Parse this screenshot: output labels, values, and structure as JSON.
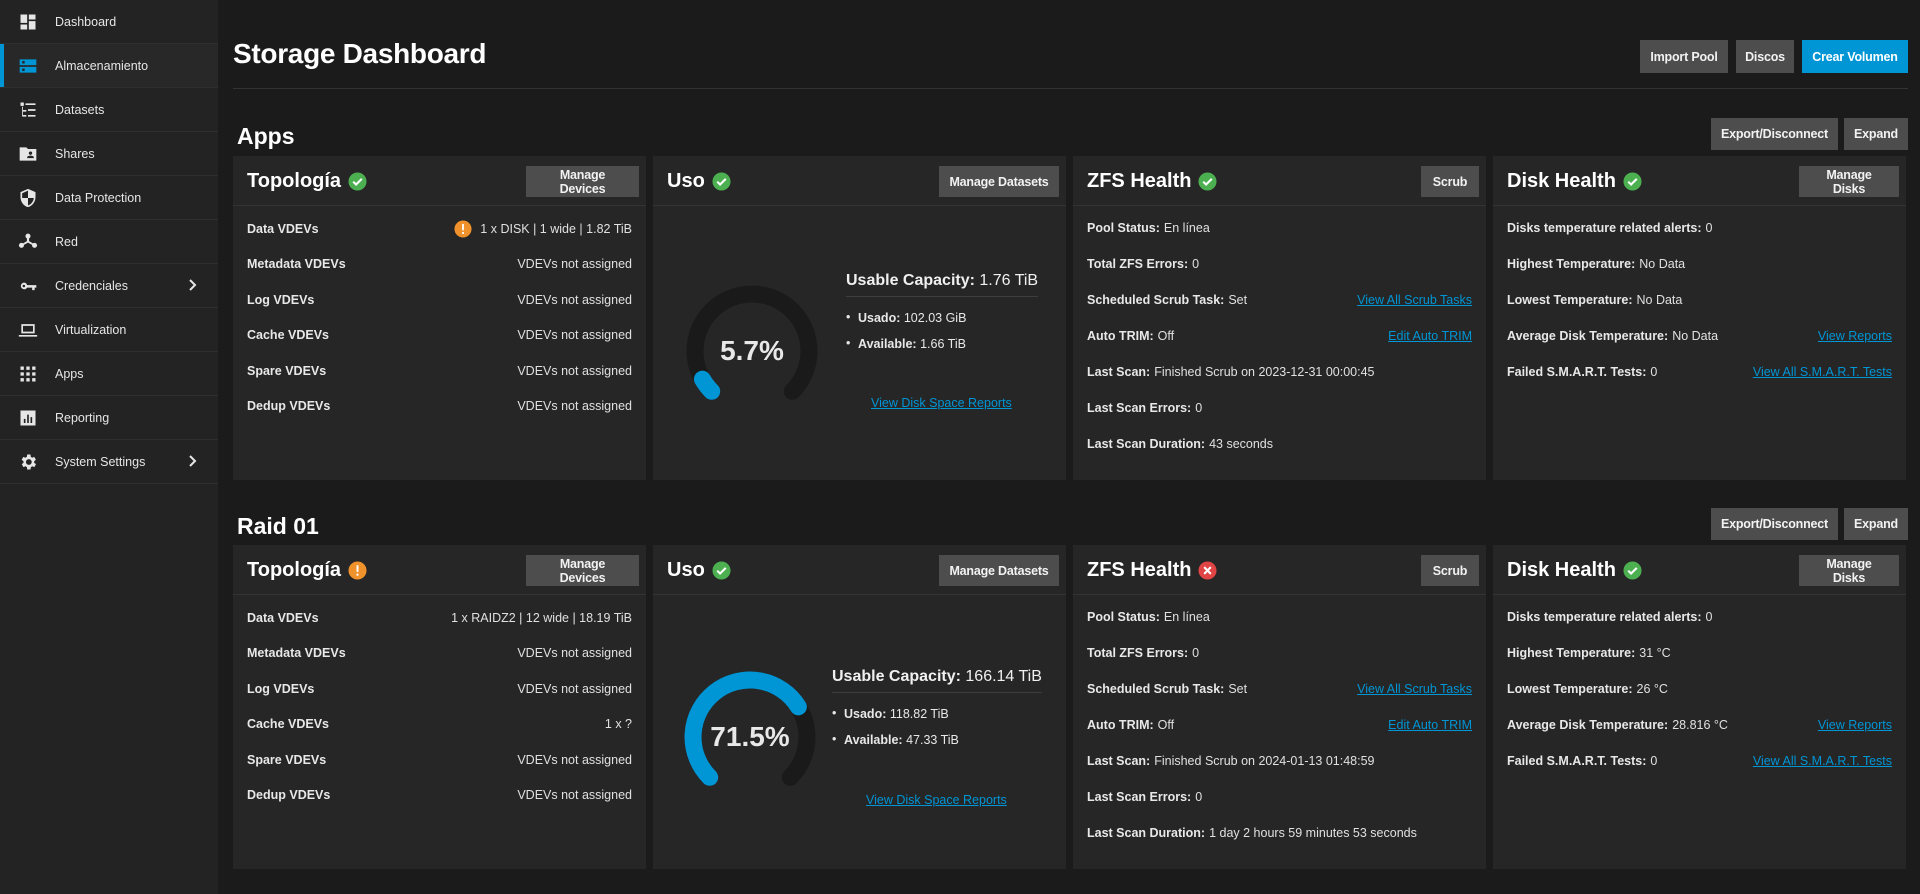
{
  "sidebar": {
    "items": [
      {
        "label": "Dashboard",
        "icon": "dashboard-icon"
      },
      {
        "label": "Almacenamiento",
        "icon": "storage-icon"
      },
      {
        "label": "Datasets",
        "icon": "datasets-icon"
      },
      {
        "label": "Shares",
        "icon": "shares-icon"
      },
      {
        "label": "Data Protection",
        "icon": "shield-icon"
      },
      {
        "label": "Red",
        "icon": "network-icon"
      },
      {
        "label": "Credenciales",
        "icon": "key-icon"
      },
      {
        "label": "Virtualization",
        "icon": "laptop-icon"
      },
      {
        "label": "Apps",
        "icon": "apps-grid-icon"
      },
      {
        "label": "Reporting",
        "icon": "reporting-icon"
      },
      {
        "label": "System Settings",
        "icon": "gear-icon"
      }
    ]
  },
  "header": {
    "title": "Storage Dashboard",
    "import_pool": "Import Pool",
    "discos": "Discos",
    "crear_volumen": "Crear Volumen"
  },
  "colors": {
    "accent": "#0095d5",
    "ok": "#4caf50",
    "warn": "#f0922b",
    "error": "#e04444"
  },
  "common": {
    "export": "Export/Disconnect",
    "expand": "Expand",
    "topology_title": "Topología",
    "usage_title": "Uso",
    "zfs_title": "ZFS Health",
    "disk_title": "Disk Health",
    "manage_devices": "Manage Devices",
    "manage_datasets": "Manage Datasets",
    "scrub": "Scrub",
    "manage_disks": "Manage Disks",
    "usable_capacity_label": "Usable Capacity:",
    "used_label": "Usado:",
    "available_label": "Available:",
    "view_disk_space_reports": "View Disk Space Reports",
    "topology_labels": [
      "Data VDEVs",
      "Metadata VDEVs",
      "Log VDEVs",
      "Cache VDEVs",
      "Spare VDEVs",
      "Dedup VDEVs"
    ],
    "pool_status_label": "Pool Status:",
    "total_zfs_errors_label": "Total ZFS Errors:",
    "scheduled_scrub_label": "Scheduled Scrub Task:",
    "auto_trim_label": "Auto TRIM:",
    "last_scan_label": "Last Scan:",
    "last_scan_errors_label": "Last Scan Errors:",
    "last_scan_duration_label": "Last Scan Duration:",
    "view_all_scrub_tasks": "View All Scrub Tasks",
    "edit_auto_trim": "Edit Auto TRIM",
    "disks_temp_alerts_label": "Disks temperature related alerts:",
    "highest_temp_label": "Highest Temperature:",
    "lowest_temp_label": "Lowest Temperature:",
    "avg_temp_label": "Average Disk Temperature:",
    "failed_smart_label": "Failed S.M.A.R.T. Tests:",
    "view_reports": "View Reports",
    "view_all_smart_tests": "View All S.M.A.R.T. Tests"
  },
  "pools": [
    {
      "name": "Apps",
      "topology_status": "ok",
      "topology": [
        "1 x DISK | 1 wide | 1.82 TiB",
        "VDEVs not assigned",
        "VDEVs not assigned",
        "VDEVs not assigned",
        "VDEVs not assigned",
        "VDEVs not assigned"
      ],
      "usage": {
        "percent_text": "5.7%",
        "percent": 5.7,
        "usable_capacity": "1.76 TiB",
        "used": "102.03 GiB",
        "available": "1.66 TiB"
      },
      "zfs_status": "ok",
      "zfs": {
        "pool_status": "En línea",
        "total_errors": "0",
        "scheduled_scrub": "Set",
        "auto_trim": "Off",
        "last_scan": "Finished Scrub on 2023-12-31 00:00:45",
        "last_scan_errors": "0",
        "last_scan_duration": "43 seconds"
      },
      "disk": {
        "alerts": "0",
        "highest": "No Data",
        "lowest": "No Data",
        "average": "No Data",
        "failed_smart": "0"
      }
    },
    {
      "name": "Raid 01",
      "topology_status": "warn",
      "topology": [
        "1 x RAIDZ2 | 12 wide | 18.19 TiB",
        "VDEVs not assigned",
        "VDEVs not assigned",
        "1 x ?",
        "VDEVs not assigned",
        "VDEVs not assigned"
      ],
      "usage": {
        "percent_text": "71.5%",
        "percent": 71.5,
        "usable_capacity": "166.14 TiB",
        "used": "118.82 TiB",
        "available": "47.33 TiB"
      },
      "zfs_status": "error",
      "zfs": {
        "pool_status": "En línea",
        "total_errors": "0",
        "scheduled_scrub": "Set",
        "auto_trim": "Off",
        "last_scan": "Finished Scrub on 2024-01-13 01:48:59",
        "last_scan_errors": "0",
        "last_scan_duration": "1 day 2 hours 59 minutes 53 seconds"
      },
      "disk": {
        "alerts": "0",
        "highest": "31 °C",
        "lowest": "26 °C",
        "average": "28.816 °C",
        "failed_smart": "0"
      }
    }
  ]
}
